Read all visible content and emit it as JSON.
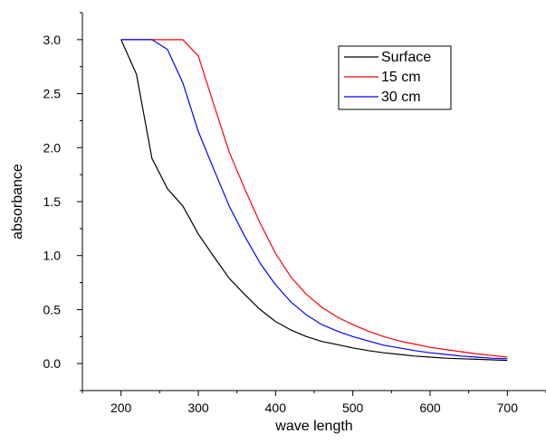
{
  "chart_data": {
    "type": "line",
    "title": "",
    "xlabel": "wave length",
    "ylabel": "absorbance",
    "xlim": [
      150,
      750
    ],
    "ylim": [
      -0.25,
      3.25
    ],
    "xticks": [
      200,
      300,
      400,
      500,
      600,
      700
    ],
    "yticks": [
      0.0,
      0.5,
      1.0,
      1.5,
      2.0,
      2.5,
      3.0
    ],
    "xtick_labels": [
      "200",
      "300",
      "400",
      "500",
      "600",
      "700"
    ],
    "ytick_labels": [
      "0.0",
      "0.5",
      "1.0",
      "1.5",
      "2.0",
      "2.5",
      "3.0"
    ],
    "grid": false,
    "legend_position": "top-right",
    "x": [
      200,
      220,
      240,
      260,
      280,
      300,
      320,
      340,
      360,
      380,
      400,
      420,
      440,
      460,
      480,
      500,
      520,
      540,
      560,
      580,
      600,
      620,
      640,
      660,
      680,
      700
    ],
    "series": [
      {
        "name": "Surface",
        "color": "#000000",
        "values": [
          3.0,
          2.68,
          1.9,
          1.62,
          1.46,
          1.2,
          0.99,
          0.79,
          0.64,
          0.5,
          0.39,
          0.31,
          0.25,
          0.205,
          0.175,
          0.145,
          0.12,
          0.1,
          0.085,
          0.07,
          0.06,
          0.05,
          0.045,
          0.04,
          0.035,
          0.03
        ]
      },
      {
        "name": "15 cm",
        "color": "#ff0000",
        "values": [
          3.0,
          3.0,
          3.0,
          3.0,
          3.0,
          2.85,
          2.4,
          1.96,
          1.62,
          1.3,
          1.02,
          0.8,
          0.64,
          0.52,
          0.43,
          0.36,
          0.3,
          0.25,
          0.21,
          0.18,
          0.15,
          0.13,
          0.11,
          0.09,
          0.075,
          0.06
        ]
      },
      {
        "name": "30 cm",
        "color": "#0000ff",
        "values": [
          3.0,
          3.0,
          3.0,
          2.91,
          2.6,
          2.15,
          1.8,
          1.46,
          1.18,
          0.93,
          0.73,
          0.57,
          0.45,
          0.36,
          0.3,
          0.25,
          0.21,
          0.17,
          0.145,
          0.12,
          0.1,
          0.085,
          0.07,
          0.06,
          0.05,
          0.045
        ]
      }
    ]
  }
}
